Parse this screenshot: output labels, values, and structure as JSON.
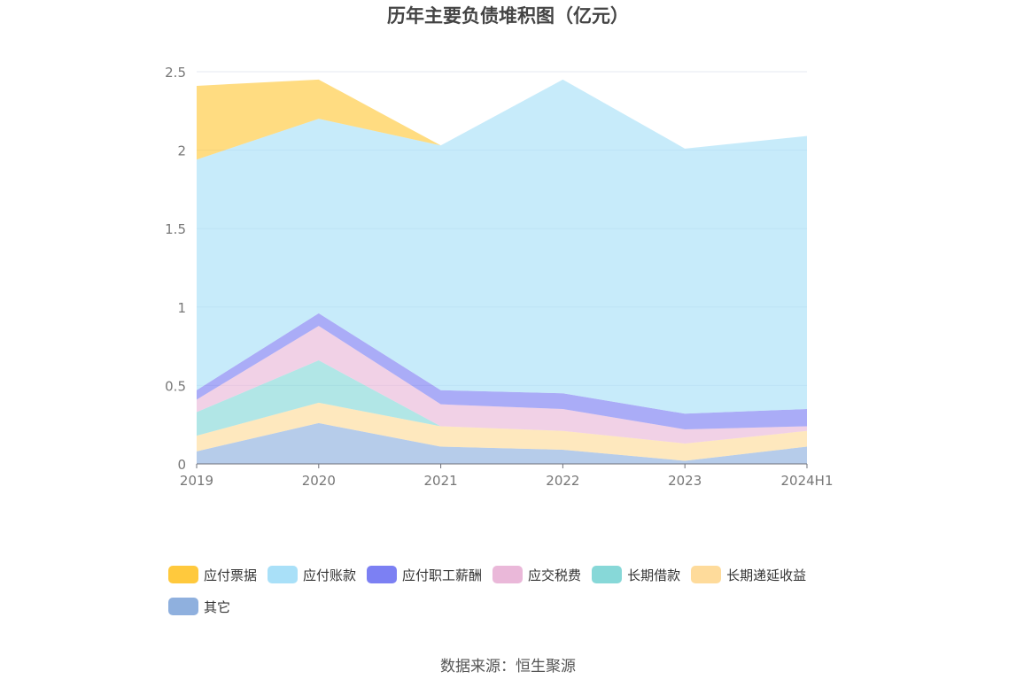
{
  "chart_data": {
    "type": "area",
    "stacked": true,
    "title": "历年主要负债堆积图（亿元）",
    "categories": [
      "2019",
      "2020",
      "2021",
      "2022",
      "2023",
      "2024H1"
    ],
    "ylim": [
      0,
      2.5
    ],
    "yticks": [
      "0",
      "0.5",
      "1",
      "1.5",
      "2",
      "2.5"
    ],
    "grid": true,
    "legend_position": "bottom",
    "series": [
      {
        "name": "其它",
        "color": "#8fb0de",
        "values": [
          0.08,
          0.26,
          0.11,
          0.09,
          0.02,
          0.11
        ]
      },
      {
        "name": "长期递延收益",
        "color": "#fedb9b",
        "values": [
          0.1,
          0.13,
          0.13,
          0.12,
          0.11,
          0.1
        ]
      },
      {
        "name": "长期借款",
        "color": "#87d8d8",
        "values": [
          0.15,
          0.27,
          0.0,
          0.0,
          0.0,
          0.0
        ]
      },
      {
        "name": "应交税费",
        "color": "#eab8d9",
        "values": [
          0.08,
          0.22,
          0.14,
          0.14,
          0.09,
          0.03
        ]
      },
      {
        "name": "应付职工薪酬",
        "color": "#7c80f3",
        "values": [
          0.06,
          0.08,
          0.09,
          0.1,
          0.1,
          0.11
        ]
      },
      {
        "name": "应付账款",
        "color": "#a9e0f8",
        "values": [
          1.47,
          1.24,
          1.56,
          2.0,
          1.69,
          1.74
        ]
      },
      {
        "name": "应付票据",
        "color": "#ffc93d",
        "values": [
          0.47,
          0.25,
          0.0,
          0.0,
          0.0,
          0.0
        ]
      }
    ],
    "legend_order": [
      "应付票据",
      "应付账款",
      "应付职工薪酬",
      "应交税费",
      "长期借款",
      "长期递延收益",
      "其它"
    ]
  },
  "source": "数据来源：恒生聚源"
}
